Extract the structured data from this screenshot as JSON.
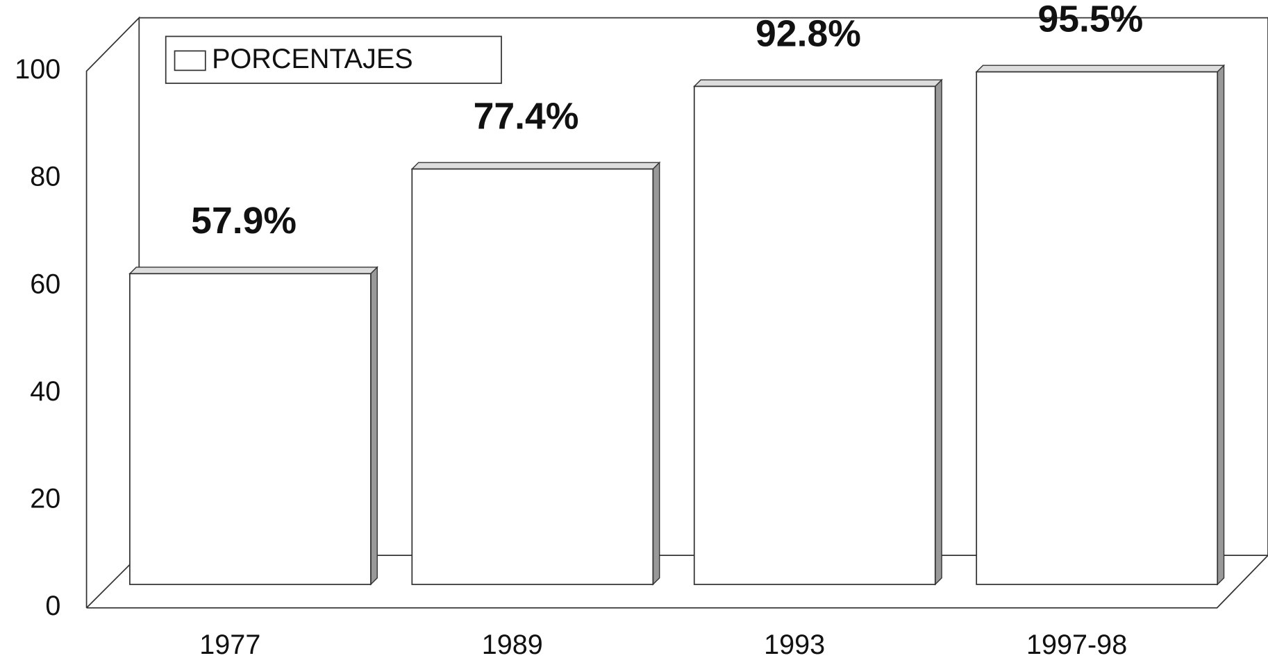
{
  "chart_data": {
    "type": "bar3d",
    "categories": [
      "1977",
      "1989",
      "1993",
      "1997-98"
    ],
    "series": [
      {
        "name": "PORCENTAJES",
        "color": "#ffffff",
        "values": [
          57.9,
          77.4,
          92.8,
          95.5
        ],
        "value_labels": [
          "57.9%",
          "77.4%",
          "92.8%",
          "95.5%"
        ]
      }
    ],
    "ylim": [
      0,
      100
    ],
    "yticks": [
      0,
      20,
      40,
      60,
      80,
      100
    ],
    "grid": false,
    "legend": "top-left"
  }
}
